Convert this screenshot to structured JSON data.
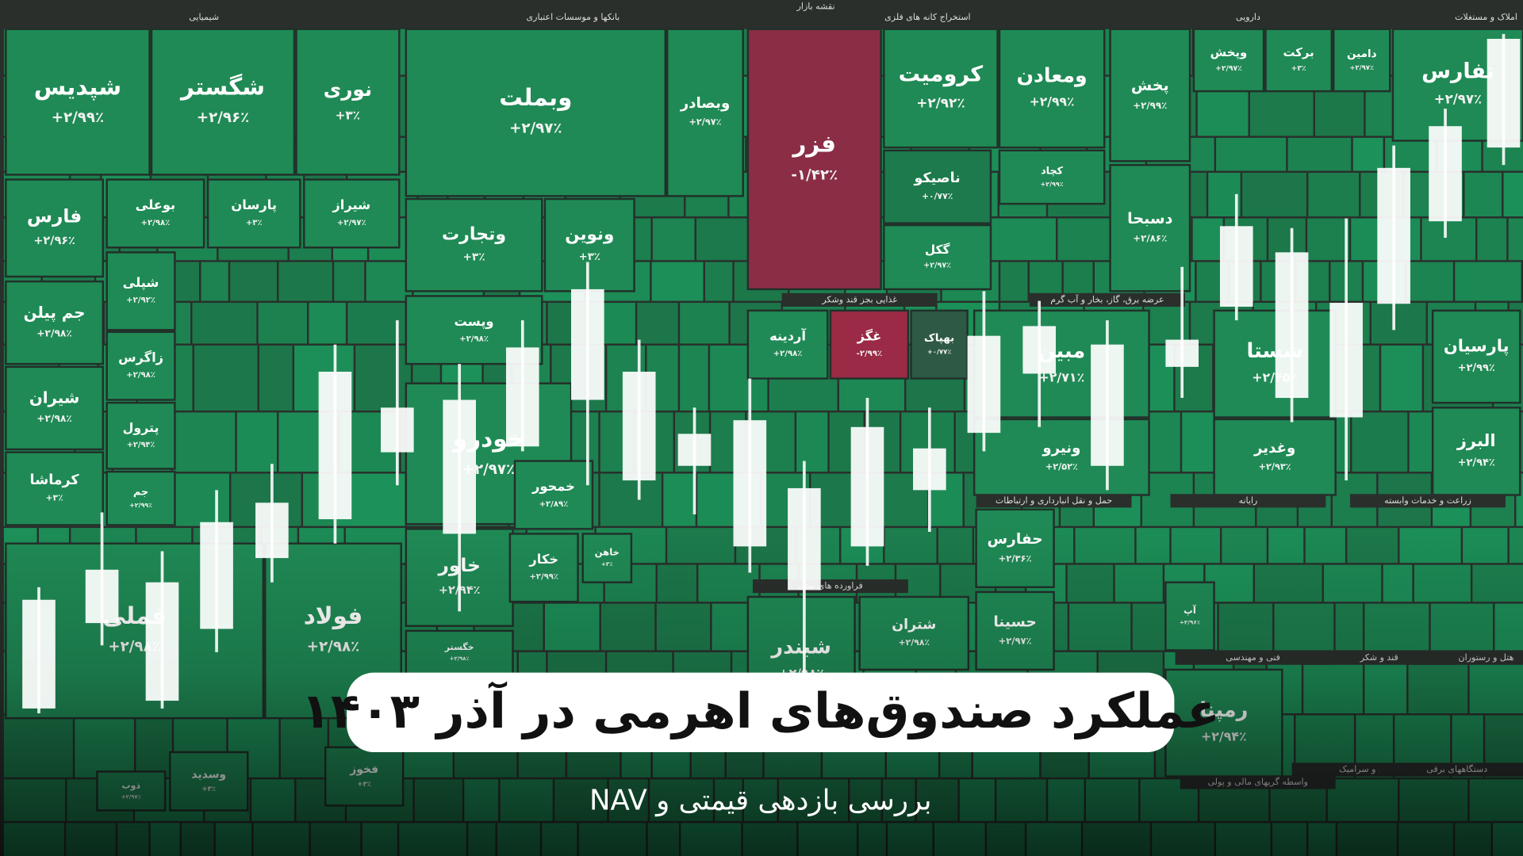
{
  "header": {
    "map_title": "نقشه بازار"
  },
  "sectors": [
    "شیمیایی",
    "بانکها و موسسات اعتباری",
    "استخراج کانه های فلزی",
    "دارویی",
    "املاک و مستغلات",
    "غذایی بجز قند وشکر",
    "عرضه برق، گاز، بخار و آب گرم",
    "حمل و نقل انبارداری و ارتباطات",
    "رایانه",
    "زراعت و خدمات وابسته",
    "فراورده های نفتی",
    "فنی و مهندسی",
    "قند و شکر",
    "هتل و رستوران",
    "کاشی و سرامیک",
    "دستگاههای برقی",
    "واسطه گریهای مالی و پولی"
  ],
  "tiles": [
    {
      "name": "شپدیس",
      "change": "+۲/۹۹٪",
      "color": "#1f8a55"
    },
    {
      "name": "شگستر",
      "change": "+۲/۹۶٪",
      "color": "#1f8a55"
    },
    {
      "name": "نوری",
      "change": "+۳٪",
      "color": "#1f8a55"
    },
    {
      "name": "وبملت",
      "change": "+۲/۹۷٪",
      "color": "#1f8a55"
    },
    {
      "name": "وبصادر",
      "change": "+۲/۹۷٪",
      "color": "#1f8a55"
    },
    {
      "name": "فزر",
      "change": "-۱/۴۲٪",
      "color": "#8a2d45"
    },
    {
      "name": "کرومیت",
      "change": "+۲/۹۲٪",
      "color": "#1f8a55"
    },
    {
      "name": "ومعادن",
      "change": "+۲/۹۹٪",
      "color": "#1f8a55"
    },
    {
      "name": "پخش",
      "change": "+۲/۹۹٪",
      "color": "#1f8a55"
    },
    {
      "name": "وپخش",
      "change": "+۲/۹۷٪",
      "color": "#1f8a55"
    },
    {
      "name": "برکت",
      "change": "+۳٪",
      "color": "#1f8a55"
    },
    {
      "name": "دامین",
      "change": "+۲/۹۷٪",
      "color": "#1f8a55"
    },
    {
      "name": "تفارس",
      "change": "+۲/۹۷٪",
      "color": "#1f8a55"
    },
    {
      "name": "فارس",
      "change": "+۲/۹۶٪",
      "color": "#1f8a55"
    },
    {
      "name": "بوعلی",
      "change": "+۲/۹۸٪",
      "color": "#1f8a55"
    },
    {
      "name": "پارسان",
      "change": "+۳٪",
      "color": "#1f8a55"
    },
    {
      "name": "شیراز",
      "change": "+۲/۹۷٪",
      "color": "#1f8a55"
    },
    {
      "name": "وتجارت",
      "change": "+۳٪",
      "color": "#1f8a55"
    },
    {
      "name": "ونوین",
      "change": "+۳٪",
      "color": "#1f8a55"
    },
    {
      "name": "ناصیکو",
      "change": "+۰/۷۷٪",
      "color": "#1c7a4c"
    },
    {
      "name": "کچاد",
      "change": "+۲/۹۹٪",
      "color": "#1f8a55"
    },
    {
      "name": "گکل",
      "change": "+۲/۹۷٪",
      "color": "#1f8a55"
    },
    {
      "name": "دسبحا",
      "change": "+۲/۸۶٪",
      "color": "#1f8a55"
    },
    {
      "name": "جم پیلن",
      "change": "+۲/۹۸٪",
      "color": "#1f8a55"
    },
    {
      "name": "شپلی",
      "change": "+۲/۹۲٪",
      "color": "#1f8a55"
    },
    {
      "name": "زاگرس",
      "change": "+۲/۹۸٪",
      "color": "#1f8a55"
    },
    {
      "name": "شیران",
      "change": "+۲/۹۸٪",
      "color": "#1f8a55"
    },
    {
      "name": "پترول",
      "change": "+۲/۹۴٪",
      "color": "#1f8a55"
    },
    {
      "name": "کرماشا",
      "change": "+۳٪",
      "color": "#1f8a55"
    },
    {
      "name": "جم",
      "change": "+۲/۹۹٪",
      "color": "#1f8a55"
    },
    {
      "name": "وپست",
      "change": "+۲/۹۸٪",
      "color": "#1f8a55"
    },
    {
      "name": "آردینه",
      "change": "+۲/۹۸٪",
      "color": "#1f8a55"
    },
    {
      "name": "غگز",
      "change": "-۲/۹۹٪",
      "color": "#9a2a45"
    },
    {
      "name": "بهپاک",
      "change": "+۰/۷۷٪",
      "color": "#2e5a45"
    },
    {
      "name": "مبین",
      "change": "+۲/۷۱٪",
      "color": "#1f8a55"
    },
    {
      "name": "ونیرو",
      "change": "+۲/۵۲٪",
      "color": "#1f8a55"
    },
    {
      "name": "شستا",
      "change": "+۲/۴۵٪",
      "color": "#1f8a55"
    },
    {
      "name": "وغدیر",
      "change": "+۲/۹۳٪",
      "color": "#1f8a55"
    },
    {
      "name": "پارسیان",
      "change": "+۲/۹۹٪",
      "color": "#1f8a55"
    },
    {
      "name": "البرز",
      "change": "+۲/۹۴٪",
      "color": "#1f8a55"
    },
    {
      "name": "خودرو",
      "change": "+۲/۹۷٪",
      "color": "#1f8a55"
    },
    {
      "name": "خمحور",
      "change": "+۲/۸۹٪",
      "color": "#1f8a55"
    },
    {
      "name": "خاور",
      "change": "+۲/۹۴٪",
      "color": "#1f8a55"
    },
    {
      "name": "فملی",
      "change": "+۲/۹۸٪",
      "color": "#1f8a55"
    },
    {
      "name": "فولاد",
      "change": "+۲/۹۸٪",
      "color": "#1f8a55"
    },
    {
      "name": "شبندر",
      "change": "+۲/۹۸٪",
      "color": "#1f8a55"
    },
    {
      "name": "شتران",
      "change": "+۲/۹۸٪",
      "color": "#1f8a55"
    },
    {
      "name": "حفارس",
      "change": "+۲/۳۶٪",
      "color": "#1f8a55"
    },
    {
      "name": "حسینا",
      "change": "+۲/۹۷٪",
      "color": "#1f8a55"
    },
    {
      "name": "رمپنا",
      "change": "+۲/۹۴٪",
      "color": "#1f8a55"
    },
    {
      "name": "آپ",
      "change": "+۲/۹۶٪",
      "color": "#1f8a55"
    },
    {
      "name": "خکار",
      "change": "+۲/۹۹٪",
      "color": "#1f8a55"
    },
    {
      "name": "خاهن",
      "change": "+۳٪",
      "color": "#1f8a55"
    },
    {
      "name": "خگستر",
      "change": "+۲/۹۸٪",
      "color": "#1f8a55"
    },
    {
      "name": "وسدید",
      "change": "+۳٪",
      "color": "#1f8a55"
    },
    {
      "name": "فخوز",
      "change": "+۳٪",
      "color": "#1f8a55"
    },
    {
      "name": "ذوب",
      "change": "+۲/۹۷٪",
      "color": "#1f8a55"
    }
  ],
  "banner": {
    "title": "عملکرد صندوق‌های اهرمی در آذر ۱۴۰۳",
    "subtitle": "بررسی بازدهی قیمتی و NAV"
  }
}
